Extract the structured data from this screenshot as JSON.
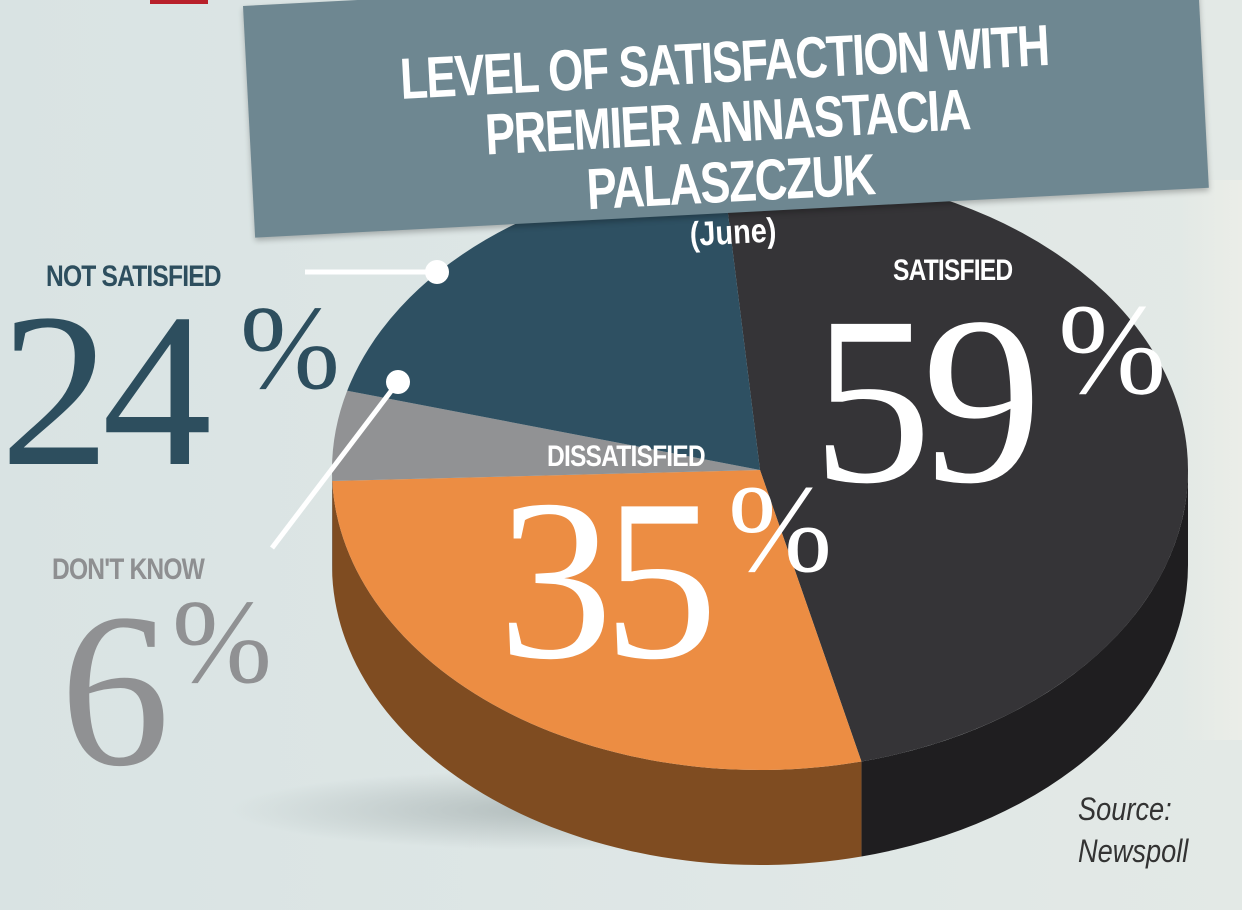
{
  "chart_data": {
    "type": "pie",
    "title": "LEVEL OF SATISFACTION WITH PREMIER ANNASTACIA PALASZCZUK",
    "title_lines": [
      "LEVEL OF SATISFACTION WITH",
      "PREMIER ANNASTACIA PALASZCZUK"
    ],
    "subtitle": "(June)",
    "slices": [
      {
        "label": "SATISFIED",
        "value": 59,
        "display": "59",
        "color": "#353437",
        "side_color": "#1f1e20"
      },
      {
        "label": "DISSATISFIED",
        "value": 35,
        "display": "35",
        "color": "#ec8d43",
        "side_color": "#7f4c21"
      },
      {
        "label": "DON'T KNOW",
        "value": 6,
        "display": "6",
        "color": "#919294",
        "side_color": "#5a5a5c"
      },
      {
        "label": "NOT SATISFIED",
        "value": 24,
        "display": "24",
        "color": "#2e5062",
        "side_color": "#1e3644"
      }
    ],
    "percent_symbol": "%",
    "source_lines": [
      "Source:",
      "Newspoll"
    ]
  },
  "colors": {
    "banner": "#6e8791",
    "label_not_satisfied": "#2d4e5e",
    "label_dont_know": "#909193"
  }
}
